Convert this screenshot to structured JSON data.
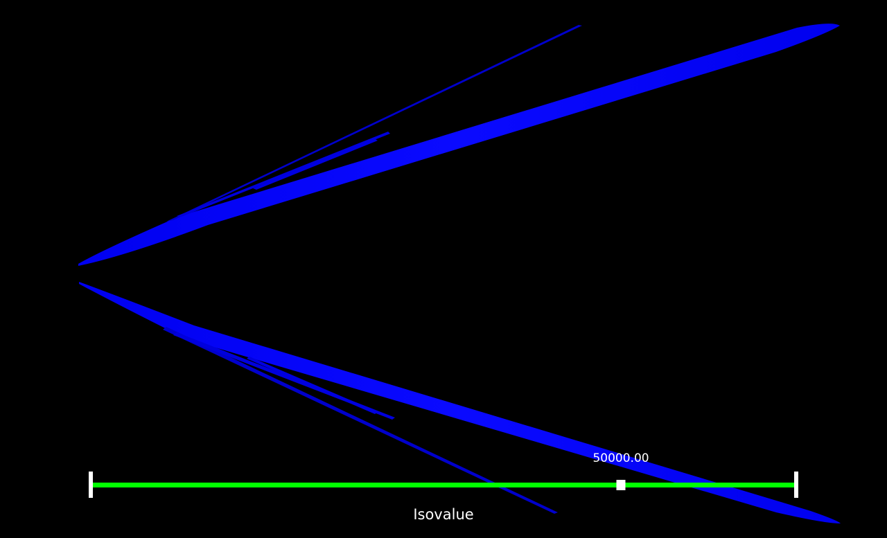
{
  "render_view": {
    "background_color": "#000000",
    "isosurface_color": "#0000ff"
  },
  "slider": {
    "title": "Isovalue",
    "value_label": "50000.00",
    "value_fraction": 0.752,
    "track_color": "#00ff00",
    "handle_color": "#ffffff"
  }
}
